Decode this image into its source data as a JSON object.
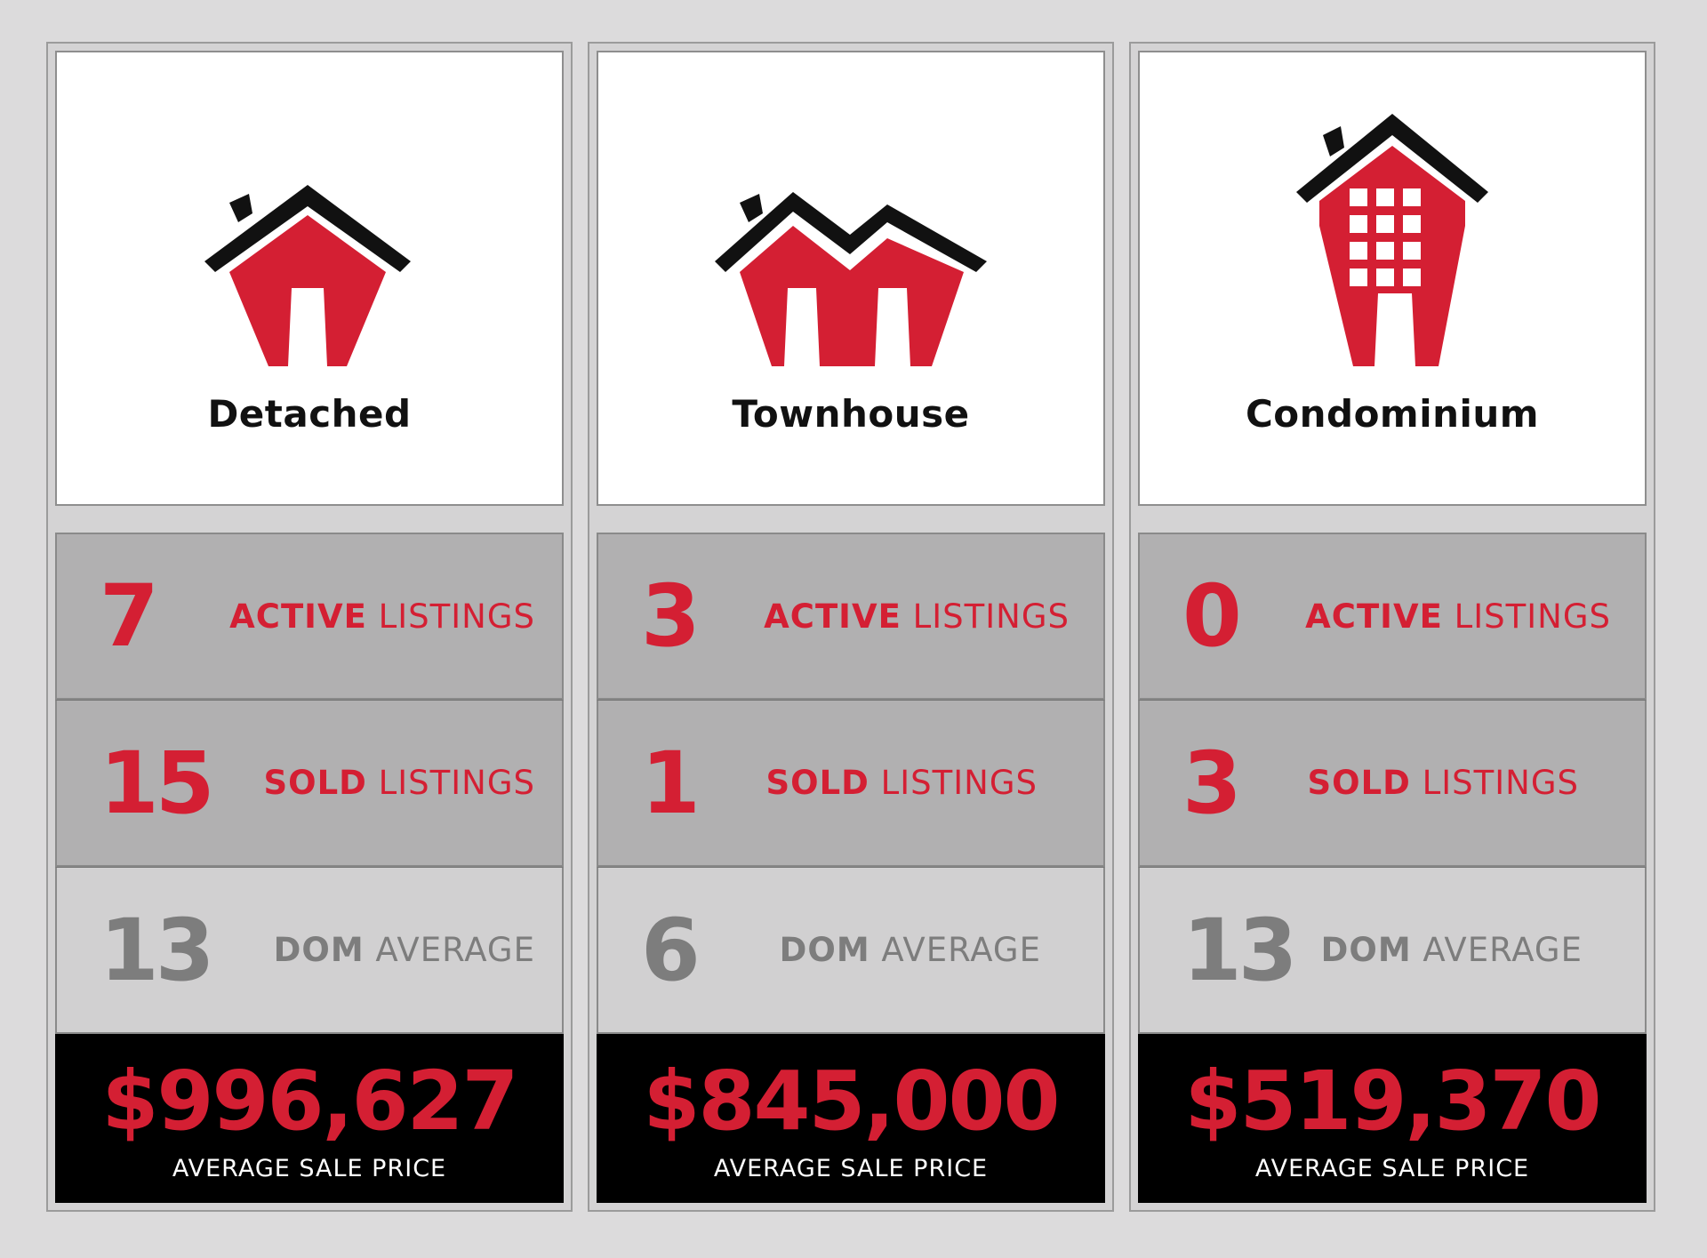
{
  "colors": {
    "accent": "#d41f33",
    "muted": "#7d7d7d",
    "price_bg": "#000000"
  },
  "panels": [
    {
      "type": "Detached",
      "icon": "detached-house-icon",
      "active": {
        "value": "7",
        "strong": "ACTIVE",
        "rest": " LISTINGS"
      },
      "sold": {
        "value": "15",
        "strong": "SOLD",
        "rest": " LISTINGS"
      },
      "dom": {
        "value": "13",
        "strong": "DOM",
        "rest": " AVERAGE"
      },
      "price": {
        "value": "$996,627",
        "label": "AVERAGE SALE PRICE"
      }
    },
    {
      "type": "Townhouse",
      "icon": "townhouse-icon",
      "active": {
        "value": "3",
        "strong": "ACTIVE",
        "rest": " LISTINGS"
      },
      "sold": {
        "value": "1",
        "strong": "SOLD",
        "rest": " LISTINGS"
      },
      "dom": {
        "value": "6",
        "strong": "DOM",
        "rest": " AVERAGE"
      },
      "price": {
        "value": "$845,000",
        "label": "AVERAGE SALE PRICE"
      }
    },
    {
      "type": "Condominium",
      "icon": "condominium-icon",
      "active": {
        "value": "0",
        "strong": "ACTIVE",
        "rest": " LISTINGS"
      },
      "sold": {
        "value": "3",
        "strong": "SOLD",
        "rest": " LISTINGS"
      },
      "dom": {
        "value": "13",
        "strong": "DOM",
        "rest": " AVERAGE"
      },
      "price": {
        "value": "$519,370",
        "label": "AVERAGE SALE PRICE"
      }
    }
  ]
}
